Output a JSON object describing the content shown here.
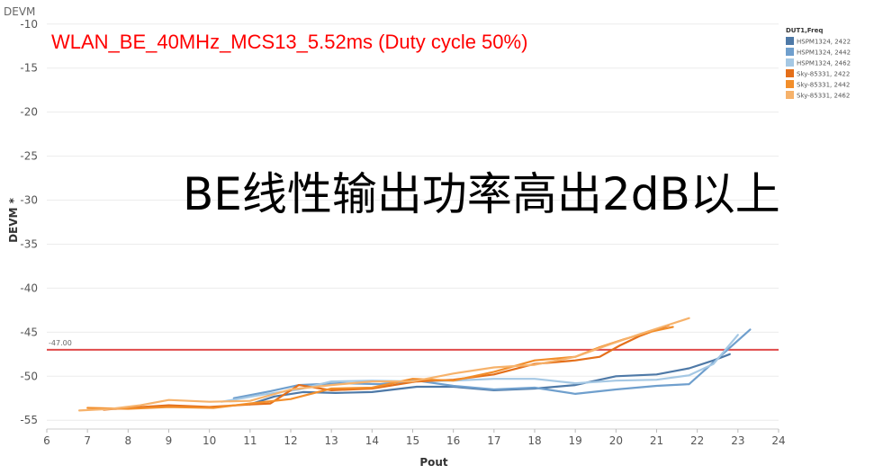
{
  "sheet_label": "DEVM",
  "colors": {
    "reference": "#e04a4a",
    "grid": "#ececec",
    "title": "#ff0000"
  },
  "chart_data": {
    "type": "line",
    "title": "WLAN_BE_40MHz_MCS13_5.52ms (Duty cycle 50%)",
    "overlay_text": "BE线性输出功率高出2dB以上",
    "xlabel": "Pout",
    "ylabel": "DEVM *",
    "xlim": [
      6,
      24
    ],
    "ylim": [
      -56,
      -9
    ],
    "x_ticks": [
      6,
      7,
      8,
      9,
      10,
      11,
      12,
      13,
      14,
      15,
      16,
      17,
      18,
      19,
      20,
      21,
      22,
      23,
      24
    ],
    "y_ticks": [
      -10,
      -15,
      -20,
      -25,
      -30,
      -35,
      -40,
      -45,
      -50,
      -55
    ],
    "grid": "horizontal",
    "reference_line": {
      "value": -47.0,
      "label": "-47.00",
      "color": "#e04a4a"
    },
    "legend": {
      "title": "DUT1,Freq",
      "position": "top-right"
    },
    "series": [
      {
        "name": "HSPM1324, 2422",
        "color": "#4e79a7",
        "x": [
          11.0,
          11.6,
          12.3,
          13.1,
          14.0,
          15.1,
          16.0,
          17.0,
          18.0,
          19.0,
          20.0,
          21.0,
          21.8,
          22.4,
          22.8
        ],
        "y": [
          -53.2,
          -52.3,
          -51.8,
          -51.9,
          -51.8,
          -51.2,
          -51.2,
          -51.6,
          -51.4,
          -51.0,
          -50.0,
          -49.8,
          -49.1,
          -48.2,
          -47.5
        ]
      },
      {
        "name": "HSPM1324, 2442",
        "color": "#6f9fcd",
        "x": [
          10.6,
          11.5,
          12.2,
          13.2,
          14.2,
          15.1,
          16.0,
          17.0,
          18.0,
          19.0,
          20.0,
          21.0,
          21.8,
          22.5,
          23.3
        ],
        "y": [
          -52.5,
          -51.7,
          -51.0,
          -50.8,
          -50.9,
          -50.5,
          -51.1,
          -51.5,
          -51.3,
          -52.0,
          -51.5,
          -51.1,
          -50.9,
          -48.0,
          -44.7
        ]
      },
      {
        "name": "HSPM1324, 2462",
        "color": "#a5c8e4",
        "x": [
          10.3,
          11.3,
          12.2,
          13.0,
          14.0,
          15.0,
          16.0,
          17.0,
          18.0,
          19.0,
          20.0,
          21.0,
          21.8,
          22.4,
          23.0
        ],
        "y": [
          -52.9,
          -52.1,
          -51.5,
          -50.6,
          -50.5,
          -50.6,
          -50.5,
          -50.3,
          -50.3,
          -50.8,
          -50.5,
          -50.4,
          -49.9,
          -48.6,
          -45.3
        ]
      },
      {
        "name": "Sky-85331, 2422",
        "color": "#e46f1a",
        "x": [
          7.4,
          8.0,
          9.0,
          10.0,
          11.0,
          11.5,
          12.2,
          13.0,
          14.0,
          15.1,
          16.0,
          17.0,
          18.0,
          19.0,
          19.6,
          20.1,
          20.6,
          21.3
        ],
        "y": [
          -53.8,
          -53.6,
          -53.3,
          -53.5,
          -53.2,
          -53.1,
          -51.0,
          -51.6,
          -51.4,
          -50.6,
          -50.4,
          -49.8,
          -48.6,
          -48.2,
          -47.8,
          -46.5,
          -45.4,
          -44.2
        ]
      },
      {
        "name": "Sky-85331, 2442",
        "color": "#f28e2b",
        "x": [
          7.0,
          8.0,
          9.0,
          10.1,
          11.0,
          12.0,
          13.0,
          14.0,
          15.0,
          16.0,
          17.0,
          18.0,
          19.0,
          19.6,
          20.2,
          20.8,
          21.4
        ],
        "y": [
          -53.6,
          -53.7,
          -53.5,
          -53.6,
          -53.1,
          -52.6,
          -51.4,
          -51.3,
          -50.3,
          -50.5,
          -49.5,
          -48.2,
          -47.8,
          -46.7,
          -45.8,
          -45.0,
          -44.4
        ]
      },
      {
        "name": "Sky-85331, 2462",
        "color": "#f6b26b",
        "x": [
          6.8,
          7.6,
          8.3,
          9.0,
          10.0,
          11.0,
          12.0,
          13.0,
          14.0,
          15.0,
          16.0,
          17.0,
          18.0,
          19.0,
          19.9,
          20.6,
          21.2,
          21.8
        ],
        "y": [
          -53.9,
          -53.7,
          -53.3,
          -52.7,
          -52.9,
          -52.8,
          -51.5,
          -51.0,
          -50.6,
          -50.6,
          -49.7,
          -49.0,
          -48.7,
          -47.8,
          -46.3,
          -45.2,
          -44.3,
          -43.4
        ]
      }
    ]
  }
}
